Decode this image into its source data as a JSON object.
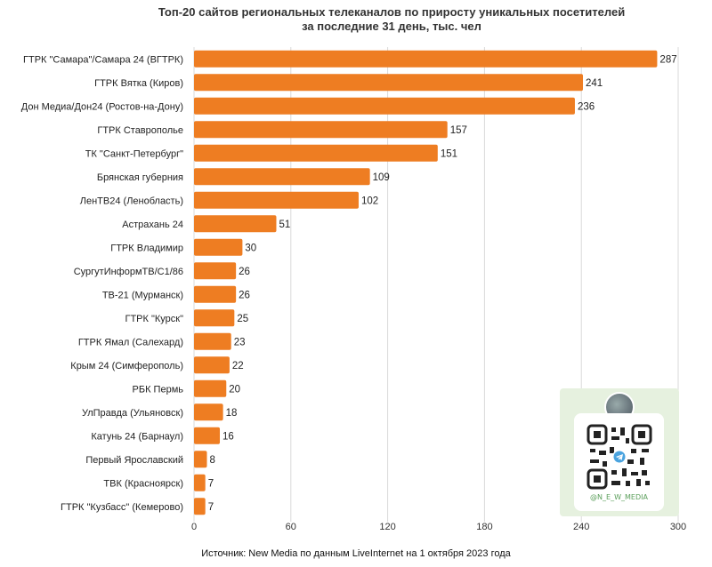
{
  "chart_data": {
    "type": "bar",
    "orientation": "horizontal",
    "title": "Топ-20 сайтов региональных телеканалов по приросту уникальных посетителей за последние 31 день, тыс. чел",
    "title_lines": [
      "Топ-20 сайтов региональных телеканалов по приросту уникальных посетителей",
      "за последние 31 день, тыс. чел"
    ],
    "categories": [
      "ГТРК \"Самара\"/Самара 24 (ВГТРК)",
      "ГТРК Вятка (Киров)",
      "Дон Медиа/Дон24 (Ростов-на-Дону)",
      "ГТРК Ставрополье",
      "ТК \"Санкт-Петербург\"",
      "Брянская губерния",
      "ЛенТВ24 (Ленобласть)",
      "Астрахань 24",
      "ГТРК Владимир",
      "СургутИнформТВ/С1/86",
      "ТВ-21 (Мурманск)",
      "ГТРК \"Курск\"",
      "ГТРК Ямал (Салехард)",
      "Крым 24 (Симферополь)",
      "РБК Пермь",
      "УлПравда (Ульяновск)",
      "Катунь 24 (Барнаул)",
      "Первый Ярославский",
      "ТВК (Красноярск)",
      "ГТРК \"Кузбасс\" (Кемерово)"
    ],
    "values": [
      287,
      241,
      236,
      157,
      151,
      109,
      102,
      51,
      30,
      26,
      26,
      25,
      23,
      22,
      20,
      18,
      16,
      8,
      7,
      7
    ],
    "xticks": [
      0,
      60,
      120,
      180,
      240,
      300
    ],
    "xlim": [
      0,
      300
    ],
    "grid": "vertical",
    "bar_color": "#ee7d22",
    "show_value_labels": true
  },
  "source_text": "Источник: New Media по данным LiveInternet на 1 октября 2023 года",
  "qr_card": {
    "handle": "@N_E_W_MEDIA",
    "background": "#e6f1df",
    "handle_color": "#5a9e5a"
  }
}
